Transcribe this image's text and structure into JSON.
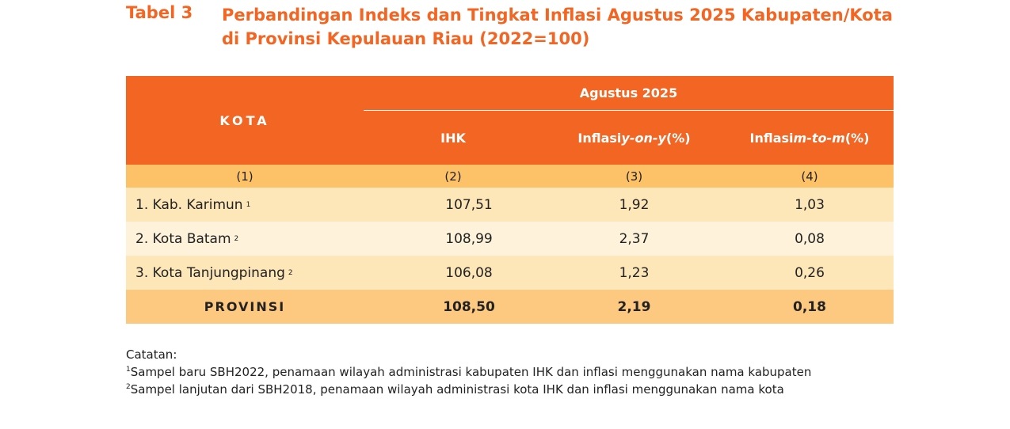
{
  "title": {
    "label": "Tabel 3",
    "line1": "Perbandingan Indeks dan Tingkat Inflasi Agustus 2025 Kabupaten/Kota",
    "line2": "di Provinsi Kepulauan Riau (2022=100)"
  },
  "table": {
    "header": {
      "kota": "KOTA",
      "group": "Agustus 2025",
      "col_ihk": "IHK",
      "col_yoy_prefix": "Inflasi ",
      "col_yoy_italic": "y-on-y",
      "col_yoy_suffix": " (%)",
      "col_mtm_prefix": "Inflasi ",
      "col_mtm_italic": "m-to-m",
      "col_mtm_suffix": " (%)"
    },
    "col_numbers": [
      "(1)",
      "(2)",
      "(3)",
      "(4)"
    ],
    "rows": [
      {
        "name": "1. Kab. Karimun",
        "note": "1",
        "ihk": "107,51",
        "yoy": "1,92",
        "mtm": "1,03"
      },
      {
        "name": "2. Kota Batam",
        "note": "2",
        "ihk": "108,99",
        "yoy": "2,37",
        "mtm": "0,08"
      },
      {
        "name": "3. Kota Tanjungpinang",
        "note": "2",
        "ihk": "106,08",
        "yoy": "1,23",
        "mtm": "0,26"
      }
    ],
    "total": {
      "name": "PROVINSI",
      "ihk": "108,50",
      "yoy": "2,19",
      "mtm": "0,18"
    }
  },
  "notes": {
    "heading": "Catatan:",
    "note1_mark": "1",
    "note1": "Sampel baru SBH2022, penamaan wilayah administrasi kabupaten IHK dan inflasi menggunakan nama kabupaten",
    "note2_mark": "2",
    "note2": "Sampel lanjutan dari SBH2018, penamaan wilayah administrasi kota IHK dan inflasi menggunakan nama kota"
  },
  "colors": {
    "accent": "#f26522",
    "col_number_row": "#fdc168",
    "row_alt_a": "#fde6b8",
    "row_alt_b": "#fef2da",
    "total_row": "#fdc880"
  }
}
